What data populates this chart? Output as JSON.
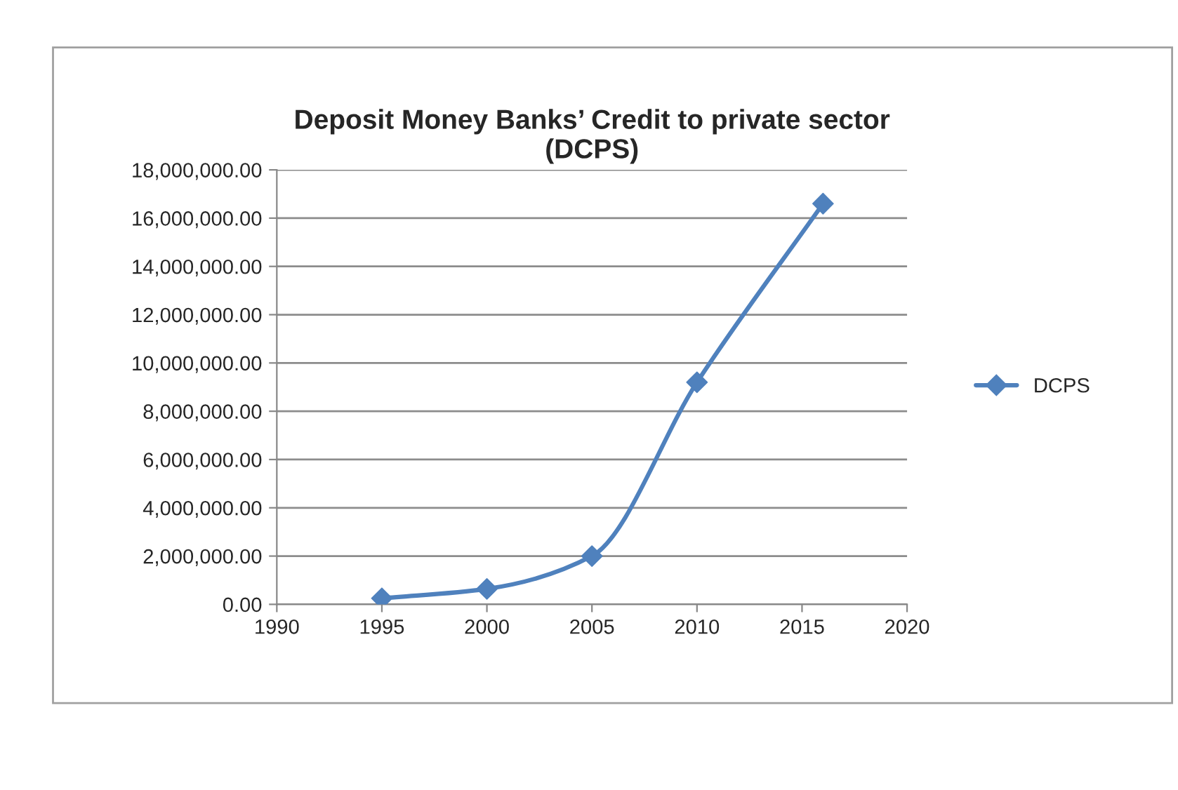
{
  "chart_data": {
    "type": "line",
    "title": "Deposit Money Banks’ Credit to private sector\n(DCPS)",
    "series": [
      {
        "name": "DCPS",
        "color": "#4f81bd",
        "x": [
          1995,
          2000,
          2005,
          2010,
          2016
        ],
        "values": [
          250000,
          640000,
          2000000,
          9200000,
          16600000
        ]
      }
    ],
    "xlim": [
      1990,
      2020
    ],
    "xticks": [
      1990,
      1995,
      2000,
      2005,
      2010,
      2015,
      2020
    ],
    "ylim": [
      0,
      18000000
    ],
    "yticks": [
      {
        "value": 0,
        "label": "0.00"
      },
      {
        "value": 2000000,
        "label": "2,000,000.00"
      },
      {
        "value": 4000000,
        "label": "4,000,000.00"
      },
      {
        "value": 6000000,
        "label": "6,000,000.00"
      },
      {
        "value": 8000000,
        "label": "8,000,000.00"
      },
      {
        "value": 10000000,
        "label": "10,000,000.00"
      },
      {
        "value": 12000000,
        "label": "12,000,000.00"
      },
      {
        "value": 14000000,
        "label": "14,000,000.00"
      },
      {
        "value": 16000000,
        "label": "16,000,000.00"
      },
      {
        "value": 18000000,
        "label": "18,000,000.00"
      }
    ],
    "grid": "y",
    "legend": "right",
    "marker": "diamond",
    "line_style": "solid"
  }
}
